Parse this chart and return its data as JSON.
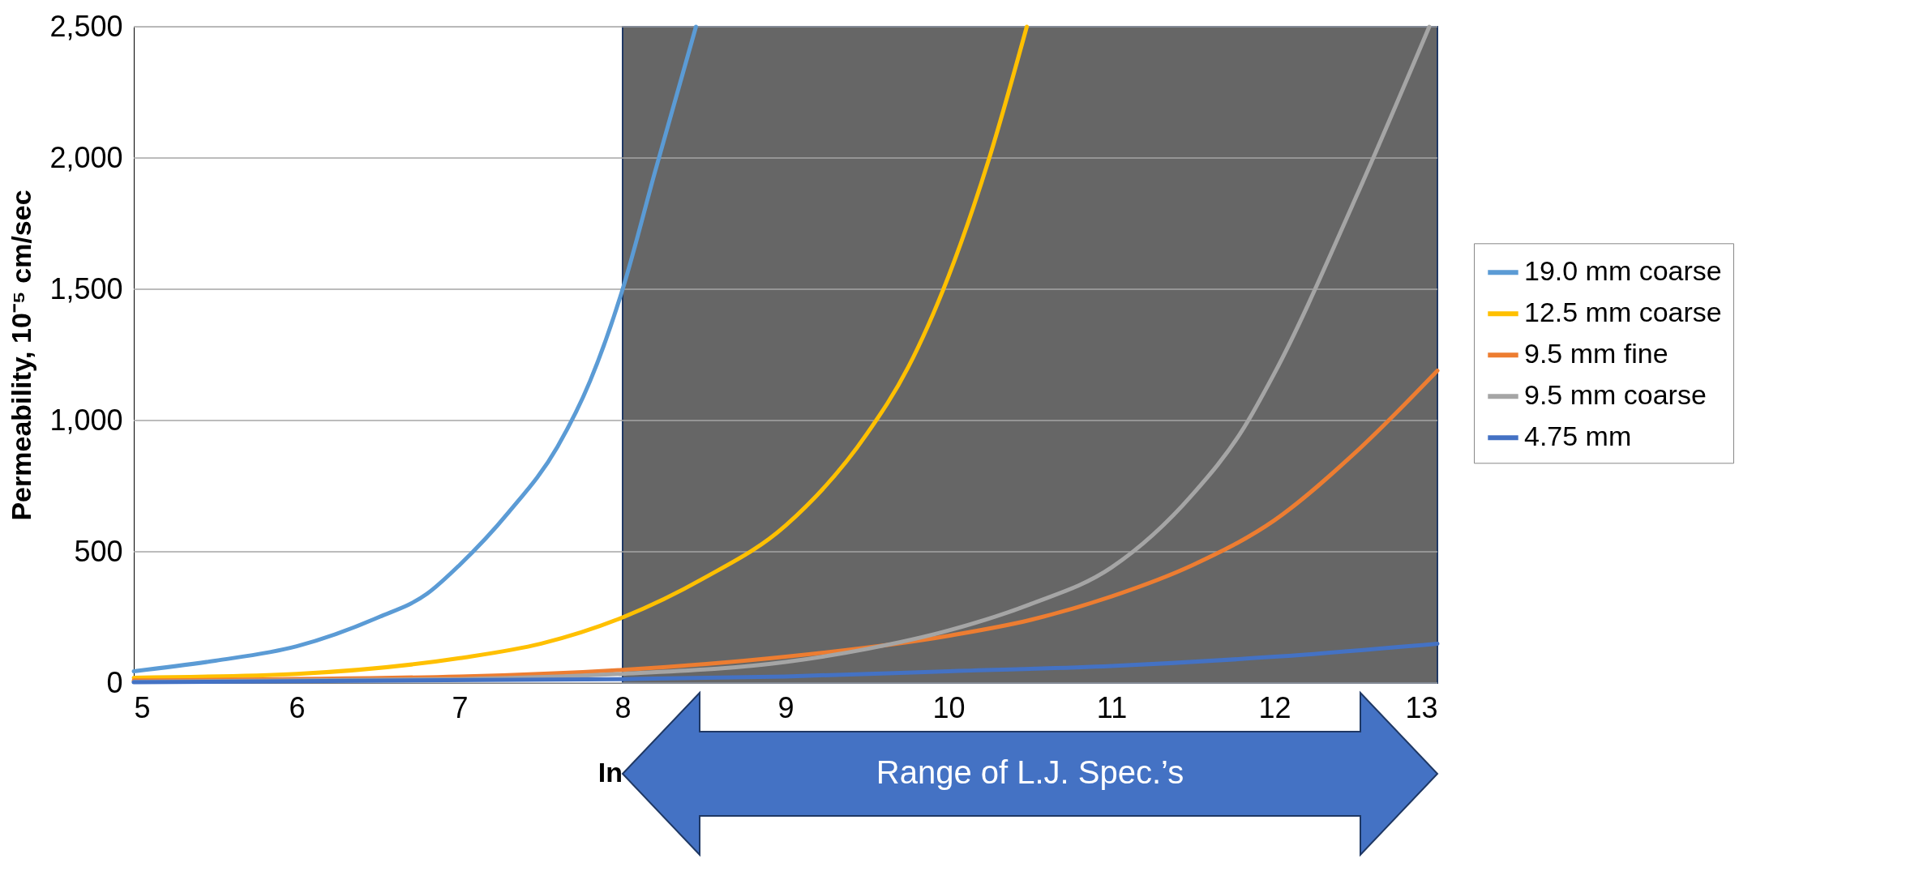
{
  "chart_data": {
    "type": "line",
    "ylabel": "Permeability, 10⁻⁵ cm/sec",
    "xlabel": "In",
    "xlim": [
      5,
      13
    ],
    "xticks": [
      5,
      6,
      7,
      8,
      9,
      10,
      11,
      12,
      13
    ],
    "ylim": [
      0,
      2500
    ],
    "yticks": [
      {
        "value": 0,
        "label": "0"
      },
      {
        "value": 500,
        "label": "500"
      },
      {
        "value": 1000,
        "label": "1,000"
      },
      {
        "value": 1500,
        "label": "1,500"
      },
      {
        "value": 2000,
        "label": "2,000"
      },
      {
        "value": 2500,
        "label": "2,500"
      }
    ],
    "grid": "y",
    "legend": "right",
    "line_style": "solid",
    "marker": "none",
    "bands": [
      {
        "axis": "x",
        "from": 8,
        "to": 13,
        "color": "#666666"
      }
    ],
    "annotations": [
      "Range of L.J. Spec.’s"
    ],
    "series": [
      {
        "name": "19.0 mm coarse",
        "color": "#5b9bd5",
        "x": [
          5,
          5.5,
          6,
          6.5,
          6.8,
          7,
          7.3,
          7.6,
          7.8,
          8,
          8.2,
          8.45
        ],
        "values": [
          45,
          85,
          140,
          250,
          340,
          450,
          650,
          900,
          1150,
          1500,
          1950,
          2500
        ]
      },
      {
        "name": "12.5 mm coarse",
        "color": "#ffc000",
        "x": [
          5,
          6,
          7,
          7.5,
          8,
          8.5,
          9,
          9.5,
          9.75,
          10,
          10.25,
          10.48
        ],
        "values": [
          20,
          35,
          95,
          150,
          250,
          400,
          600,
          950,
          1200,
          1550,
          2000,
          2500
        ]
      },
      {
        "name": "9.5 mm fine",
        "color": "#ed7d31",
        "x": [
          5,
          7,
          8,
          9,
          10,
          10.5,
          11,
          11.5,
          12,
          12.5,
          13
        ],
        "values": [
          10,
          25,
          50,
          100,
          180,
          240,
          330,
          450,
          620,
          880,
          1190
        ]
      },
      {
        "name": "9.5 mm coarse",
        "color": "#a5a5a5",
        "x": [
          5,
          7,
          8,
          9,
          9.5,
          10,
          10.5,
          11,
          11.5,
          11.8,
          12,
          12.5,
          12.95
        ],
        "values": [
          5,
          15,
          35,
          80,
          130,
          200,
          300,
          440,
          720,
          960,
          1180,
          1850,
          2500
        ]
      },
      {
        "name": "4.75 mm",
        "color": "#4472c4",
        "x": [
          5,
          8,
          9,
          10,
          11,
          12,
          13
        ],
        "values": [
          3,
          15,
          25,
          45,
          65,
          100,
          150
        ]
      }
    ]
  }
}
